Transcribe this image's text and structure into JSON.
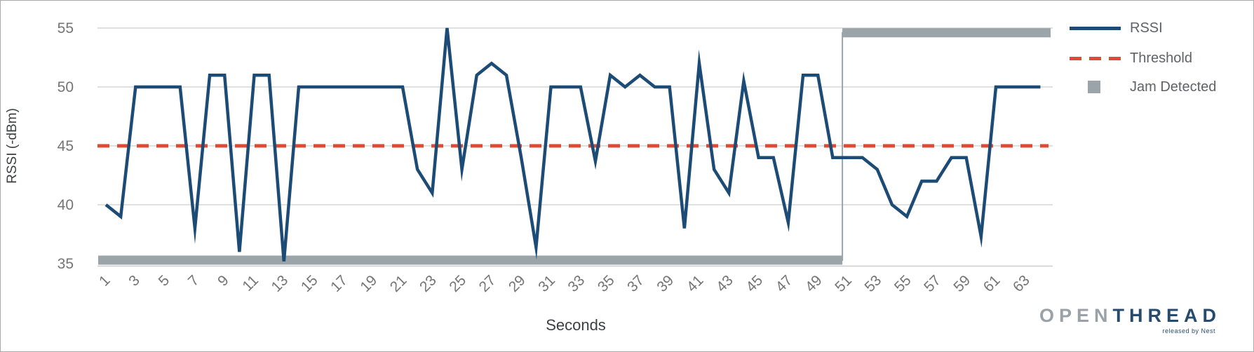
{
  "chart_data": {
    "type": "line",
    "title": "",
    "xlabel": "Seconds",
    "ylabel": "RSSI (-dBm)",
    "xlim": [
      1,
      65
    ],
    "ylim": [
      35,
      55
    ],
    "y_ticks": [
      55,
      50,
      45,
      40,
      35
    ],
    "x_ticks": [
      1,
      3,
      5,
      7,
      9,
      11,
      13,
      15,
      17,
      19,
      21,
      23,
      25,
      27,
      29,
      31,
      33,
      35,
      37,
      39,
      41,
      43,
      45,
      47,
      49,
      51,
      53,
      55,
      57,
      59,
      61,
      63
    ],
    "grid": true,
    "legend_position": "right",
    "series": [
      {
        "name": "RSSI",
        "type": "line",
        "color": "#1C4B76",
        "x_start": 1,
        "x_step": 1,
        "values": [
          40,
          39,
          50,
          50,
          50,
          50,
          38,
          51,
          51,
          36,
          51,
          51,
          35.2,
          50,
          50,
          50,
          50,
          50,
          50,
          50,
          50,
          43,
          41,
          55,
          43,
          51,
          52,
          51,
          44,
          36.4,
          50,
          50,
          50,
          43.7,
          51,
          50,
          51,
          50,
          50,
          38,
          52,
          43,
          41,
          50.5,
          44,
          44,
          38.5,
          51,
          51,
          44,
          44,
          44,
          43,
          40,
          39,
          42,
          42,
          44,
          44,
          37.3,
          50,
          50,
          50,
          50
        ]
      },
      {
        "name": "Threshold",
        "type": "horizontal-dashed-line",
        "color": "#DE4A34",
        "value": 45
      },
      {
        "name": "Jam Detected",
        "type": "boolean-level",
        "color": "#9AA4A9",
        "inactive_level": 35.3,
        "active_level": 54.6,
        "inactive_range_x": [
          1,
          50
        ],
        "active_range_x": [
          51,
          64
        ],
        "note": "thick gray bar: false (bottom) for seconds 1-50, true (top) from second 51 on, joined by thin vertical connector"
      }
    ]
  },
  "legend": {
    "rssi_label": "RSSI",
    "threshold_label": "Threshold",
    "jam_label": "Jam Detected"
  },
  "branding": {
    "logo_open": "OPEN",
    "logo_thread": "THREAD",
    "logo_sub": "released by Nest"
  }
}
